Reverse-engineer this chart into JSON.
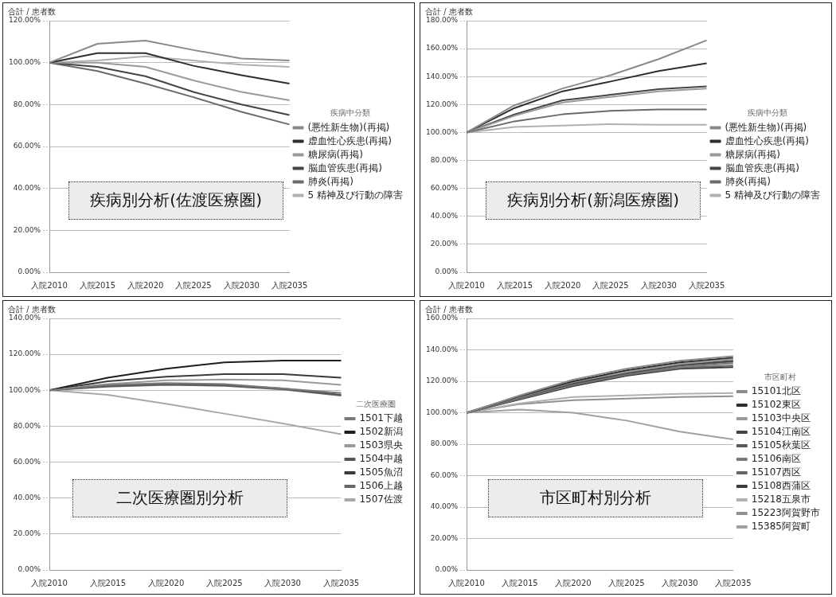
{
  "chart_data": [
    {
      "type": "line",
      "title": "疾病別分析(佐渡医療圏)",
      "ylabel": "合計 / 患者数",
      "legend_title": "疾病中分類",
      "legend": "right",
      "grid": "y",
      "marker": "none",
      "categories": [
        "入院2010",
        "入院2015",
        "入院2020",
        "入院2025",
        "入院2030",
        "入院2035"
      ],
      "ylim": [
        0,
        120
      ],
      "yticks": [
        {
          "value": 0,
          "label": "0.00%"
        },
        {
          "value": 20,
          "label": "20.00%"
        },
        {
          "value": 40,
          "label": "40.00%"
        },
        {
          "value": 60,
          "label": "60.00%"
        },
        {
          "value": 80,
          "label": "80.00%"
        },
        {
          "value": 100,
          "label": "100.00%"
        },
        {
          "value": 120,
          "label": "120.00%"
        }
      ],
      "series": [
        {
          "name": "(悪性新生物)(再掲)",
          "color": "#8a8a8a",
          "values": [
            100,
            109,
            110.5,
            106,
            102,
            101
          ]
        },
        {
          "name": "虚血性心疾患(再掲)",
          "color": "#2e2e2e",
          "values": [
            100,
            104.5,
            104.5,
            98.5,
            94,
            90
          ]
        },
        {
          "name": "糖尿病(再掲)",
          "color": "#9a9a9a",
          "values": [
            100,
            100,
            98,
            91.5,
            86,
            82
          ]
        },
        {
          "name": "脳血管疾患(再掲)",
          "color": "#444444",
          "values": [
            100,
            98,
            93.5,
            86,
            80,
            75
          ]
        },
        {
          "name": "肺炎(再掲)",
          "color": "#6a6a6a",
          "values": [
            100,
            96,
            90,
            83.5,
            76.5,
            70.5
          ]
        },
        {
          "name": "5 精神及び行動の障害",
          "color": "#b0b0b0",
          "values": [
            100,
            101,
            103,
            101,
            99,
            98
          ]
        }
      ]
    },
    {
      "type": "line",
      "title": "疾病別分析(新潟医療圏)",
      "ylabel": "合計 / 患者数",
      "legend_title": "疾病中分類",
      "legend": "right",
      "grid": "y",
      "marker": "none",
      "categories": [
        "入院2010",
        "入院2015",
        "入院2020",
        "入院2025",
        "入院2030",
        "入院2035"
      ],
      "ylim": [
        0,
        180
      ],
      "yticks": [
        {
          "value": 0,
          "label": "0.00%"
        },
        {
          "value": 20,
          "label": "20.00%"
        },
        {
          "value": 40,
          "label": "40.00%"
        },
        {
          "value": 60,
          "label": "60.00%"
        },
        {
          "value": 80,
          "label": "80.00%"
        },
        {
          "value": 100,
          "label": "100.00%"
        },
        {
          "value": 120,
          "label": "120.00%"
        },
        {
          "value": 140,
          "label": "140.00%"
        },
        {
          "value": 160,
          "label": "160.00%"
        },
        {
          "value": 180,
          "label": "180.00%"
        }
      ],
      "series": [
        {
          "name": "(悪性新生物)(再掲)",
          "color": "#8a8a8a",
          "values": [
            100,
            119.5,
            131.5,
            141,
            152.5,
            166
          ]
        },
        {
          "name": "虚血性心疾患(再掲)",
          "color": "#2e2e2e",
          "values": [
            100,
            117.5,
            129.5,
            136.5,
            144,
            149.5
          ]
        },
        {
          "name": "糖尿病(再掲)",
          "color": "#9a9a9a",
          "values": [
            100,
            112,
            121.5,
            125.5,
            129.5,
            131.5
          ]
        },
        {
          "name": "脳血管疾患(再掲)",
          "color": "#444444",
          "values": [
            100,
            113,
            123,
            127,
            131,
            133
          ]
        },
        {
          "name": "肺炎(再掲)",
          "color": "#6a6a6a",
          "values": [
            100,
            108,
            113,
            115.5,
            116.5,
            116.5
          ]
        },
        {
          "name": "5 精神及び行動の障害",
          "color": "#b0b0b0",
          "values": [
            100,
            104,
            105,
            106,
            105.5,
            105.5
          ]
        }
      ]
    },
    {
      "type": "line",
      "title": "二次医療圏別分析",
      "ylabel": "合計 / 患者数",
      "legend_title": "二次医療圏",
      "legend": "right",
      "grid": "y",
      "marker": "none",
      "categories": [
        "入院2010",
        "入院2015",
        "入院2020",
        "入院2025",
        "入院2030",
        "入院2035"
      ],
      "ylim": [
        0,
        140
      ],
      "yticks": [
        {
          "value": 0,
          "label": "0.00%"
        },
        {
          "value": 20,
          "label": "20.00%"
        },
        {
          "value": 40,
          "label": "40.00%"
        },
        {
          "value": 60,
          "label": "60.00%"
        },
        {
          "value": 80,
          "label": "80.00%"
        },
        {
          "value": 100,
          "label": "100.00%"
        },
        {
          "value": 120,
          "label": "120.00%"
        },
        {
          "value": 140,
          "label": "140.00%"
        }
      ],
      "series": [
        {
          "name": "1501下越",
          "color": "#7a7a7a",
          "values": [
            100,
            103,
            104,
            103.5,
            101,
            98.5
          ]
        },
        {
          "name": "1502新潟",
          "color": "#1e1e1e",
          "values": [
            100,
            107,
            112,
            115.5,
            116.5,
            116.5
          ]
        },
        {
          "name": "1503県央",
          "color": "#9a9a9a",
          "values": [
            100,
            103.5,
            105.5,
            106,
            105.5,
            103
          ]
        },
        {
          "name": "1504中越",
          "color": "#555555",
          "values": [
            100,
            102.5,
            103.5,
            103,
            101,
            97.5
          ]
        },
        {
          "name": "1505魚沼",
          "color": "#3a3a3a",
          "values": [
            100,
            105,
            107.5,
            109,
            109,
            107
          ]
        },
        {
          "name": "1506上越",
          "color": "#666666",
          "values": [
            100,
            102,
            103,
            102.5,
            100.5,
            97
          ]
        },
        {
          "name": "1507佐渡",
          "color": "#a8a8a8",
          "values": [
            100,
            97.5,
            92.5,
            87,
            81.5,
            75.5
          ]
        }
      ]
    },
    {
      "type": "line",
      "title": "市区町村別分析",
      "ylabel": "合計 / 患者数",
      "legend_title": "市区町村",
      "legend": "right",
      "grid": "y",
      "marker": "none",
      "categories": [
        "入院2010",
        "入院2015",
        "入院2020",
        "入院2025",
        "入院2030",
        "入院2035"
      ],
      "ylim": [
        0,
        160
      ],
      "yticks": [
        {
          "value": 0,
          "label": "0.00%"
        },
        {
          "value": 20,
          "label": "20.00%"
        },
        {
          "value": 40,
          "label": "40.00%"
        },
        {
          "value": 60,
          "label": "60.00%"
        },
        {
          "value": 80,
          "label": "80.00%"
        },
        {
          "value": 100,
          "label": "100.00%"
        },
        {
          "value": 120,
          "label": "120.00%"
        },
        {
          "value": 140,
          "label": "140.00%"
        },
        {
          "value": 160,
          "label": "160.00%"
        }
      ],
      "series": [
        {
          "name": "15101北区",
          "color": "#8a8a8a",
          "values": [
            100,
            111,
            121,
            128,
            133,
            136
          ]
        },
        {
          "name": "15102東区",
          "color": "#2e2e2e",
          "values": [
            100,
            110.5,
            120,
            127,
            132,
            135
          ]
        },
        {
          "name": "15103中央区",
          "color": "#9a9a9a",
          "values": [
            100,
            110,
            119.5,
            126,
            131,
            134
          ]
        },
        {
          "name": "15104江南区",
          "color": "#444444",
          "values": [
            100,
            110,
            119,
            125.5,
            130.5,
            133
          ]
        },
        {
          "name": "15105秋葉区",
          "color": "#5a5a5a",
          "values": [
            100,
            109.5,
            118.5,
            125,
            130,
            132.5
          ]
        },
        {
          "name": "15106南区",
          "color": "#7a7a7a",
          "values": [
            100,
            109,
            118,
            124.5,
            129,
            131.5
          ]
        },
        {
          "name": "15107西区",
          "color": "#666666",
          "values": [
            100,
            109,
            117.5,
            124,
            128.5,
            130
          ]
        },
        {
          "name": "15108西蒲区",
          "color": "#3a3a3a",
          "values": [
            100,
            108.5,
            117,
            123.5,
            128,
            129
          ]
        },
        {
          "name": "15218五泉市",
          "color": "#b0b0b0",
          "values": [
            100,
            106,
            110,
            111,
            112,
            112.5
          ]
        },
        {
          "name": "15223阿賀野市",
          "color": "#909090",
          "values": [
            100,
            105.5,
            108,
            109,
            110,
            110.5
          ]
        },
        {
          "name": "15385阿賀町",
          "color": "#a0a0a0",
          "values": [
            100,
            102,
            100,
            95,
            88,
            83
          ]
        }
      ]
    }
  ]
}
